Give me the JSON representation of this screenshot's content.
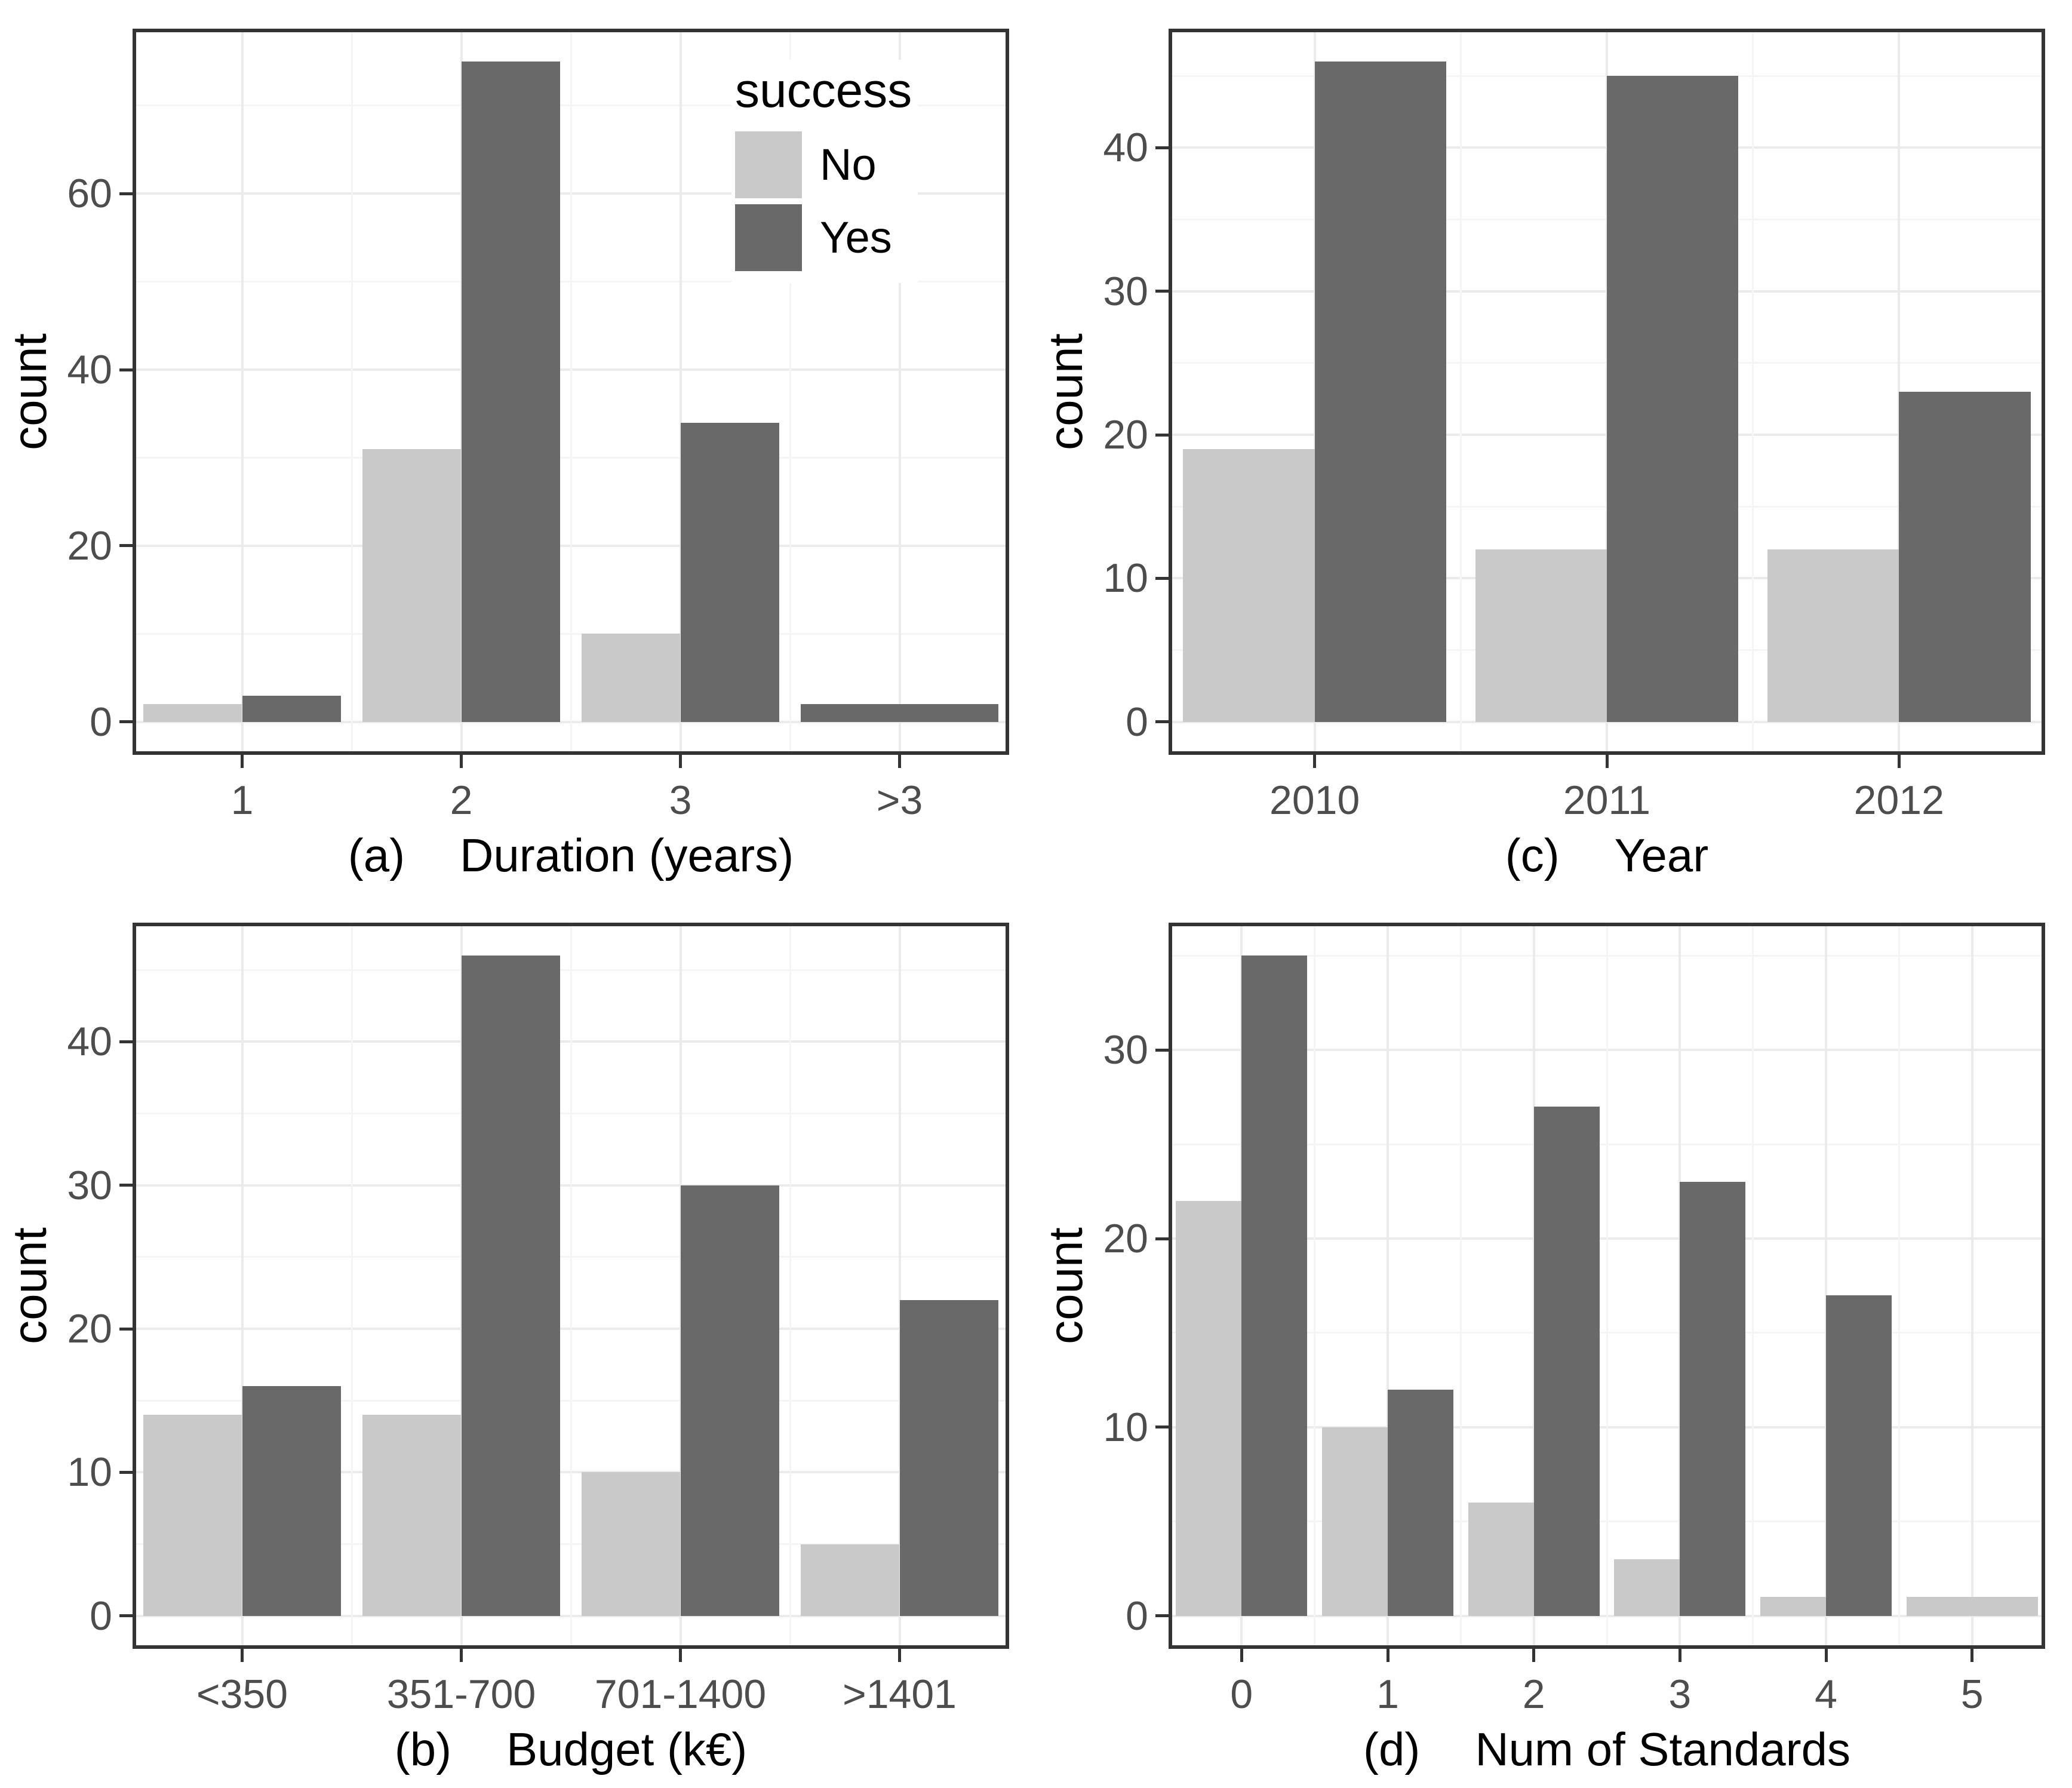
{
  "figure": {
    "background": "#ffffff",
    "y_axis_title": "count"
  },
  "style": {
    "bar_color_no": "#c9c9c9",
    "bar_color_yes": "#696969",
    "grid_major_color": "#ebebeb",
    "grid_minor_color": "#f5f5f5",
    "panel_border_color": "#343434",
    "axis_tick_color": "#343434",
    "axis_text_color": "#4d4d4d",
    "title_text_color": "#000000"
  },
  "legend": {
    "title": "success",
    "items": [
      {
        "label": "No",
        "series": "No"
      },
      {
        "label": "Yes",
        "series": "Yes"
      }
    ],
    "position": "inside top-right of panel (a)"
  },
  "chart_data": [
    {
      "type": "bar",
      "panel": "a",
      "caption_prefix": "(a)",
      "xlabel": "Duration (years)",
      "ylabel": "count",
      "categories": [
        "1",
        "2",
        "3",
        ">3"
      ],
      "series": [
        {
          "name": "No",
          "values": [
            2,
            31,
            10,
            null
          ]
        },
        {
          "name": "Yes",
          "values": [
            3,
            75,
            34,
            2
          ]
        }
      ],
      "yticks": [
        0,
        20,
        40,
        60
      ],
      "ylim": [
        -3.75,
        78.75
      ],
      "grid": true,
      "legend_visible": true
    },
    {
      "type": "bar",
      "panel": "c",
      "caption_prefix": "(c)",
      "xlabel": "Year",
      "ylabel": "count",
      "categories": [
        "2010",
        "2011",
        "2012"
      ],
      "series": [
        {
          "name": "No",
          "values": [
            19,
            12,
            12
          ]
        },
        {
          "name": "Yes",
          "values": [
            46,
            45,
            23
          ]
        }
      ],
      "yticks": [
        0,
        10,
        20,
        30,
        40
      ],
      "ylim": [
        -2.3,
        48.3
      ],
      "grid": true,
      "legend_visible": false
    },
    {
      "type": "bar",
      "panel": "b",
      "caption_prefix": "(b)",
      "xlabel": "Budget (k€)",
      "ylabel": "count",
      "categories": [
        "<350",
        "351-700",
        "701-1400",
        ">1401"
      ],
      "series": [
        {
          "name": "No",
          "values": [
            14,
            14,
            10,
            5
          ]
        },
        {
          "name": "Yes",
          "values": [
            16,
            46,
            30,
            22
          ]
        }
      ],
      "yticks": [
        0,
        10,
        20,
        30,
        40
      ],
      "ylim": [
        -2.3,
        48.3
      ],
      "grid": true,
      "legend_visible": false
    },
    {
      "type": "bar",
      "panel": "d",
      "caption_prefix": "(d)",
      "xlabel": "Num of Standards",
      "ylabel": "count",
      "categories": [
        "0",
        "1",
        "2",
        "3",
        "4",
        "5"
      ],
      "series": [
        {
          "name": "No",
          "values": [
            22,
            10,
            6,
            3,
            1,
            1
          ]
        },
        {
          "name": "Yes",
          "values": [
            35,
            12,
            27,
            23,
            17,
            null
          ]
        }
      ],
      "yticks": [
        0,
        10,
        20,
        30
      ],
      "ylim": [
        -1.75,
        36.75
      ],
      "grid": true,
      "legend_visible": false
    }
  ]
}
